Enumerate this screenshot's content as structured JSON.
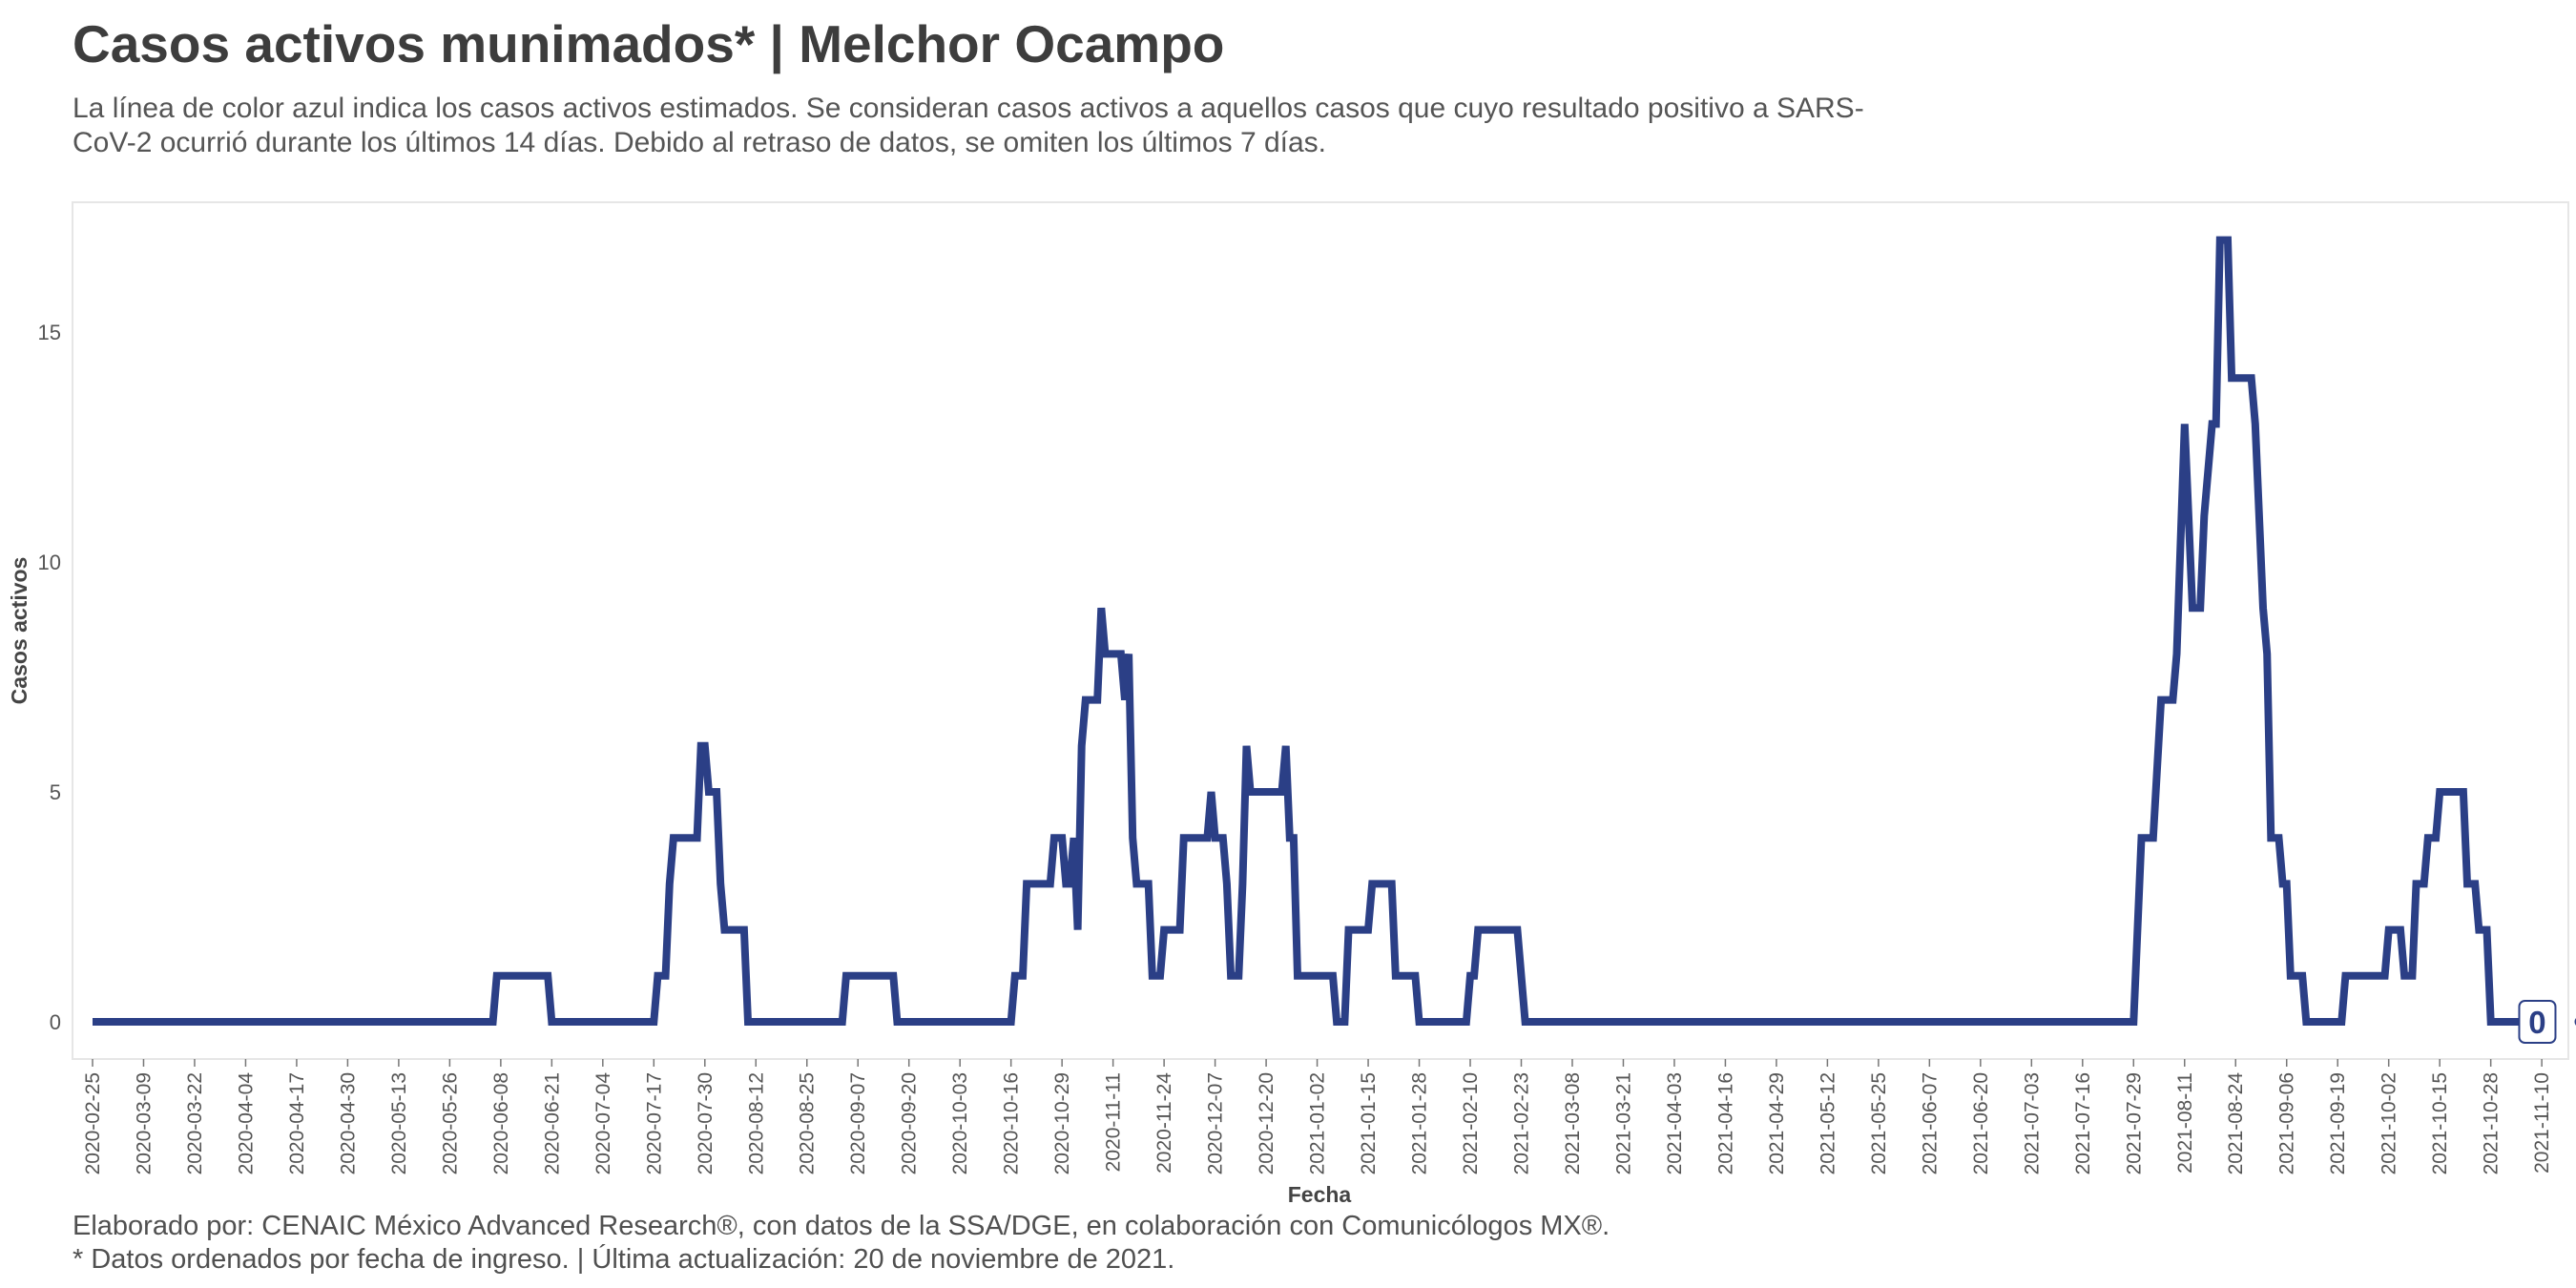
{
  "title": "Casos activos munimados* | Melchor Ocampo",
  "subtitle": "La línea de color azul indica los casos activos estimados. Se consideran casos activos a aquellos casos que cuyo resultado positivo a SARS-CoV-2 ocurrió durante los últimos 14 días. Debido al retraso de datos, se omiten los últimos 7 días.",
  "caption_line1": "Elaborado por: CENAIC México Advanced Research®, con datos de la SSA/DGE, en colaboración con Comunicólogos MX®.",
  "caption_line2": "* Datos ordenados por fecha de ingreso. | Última actualización: 20 de noviembre de 2021.",
  "colors": {
    "line": "#2b3f86",
    "grid": "#e6e6e6",
    "text": "#3d3d3d"
  },
  "chart_data": {
    "type": "line",
    "xlabel": "Fecha",
    "ylabel": "Casos activos",
    "ylim": [
      0,
      17
    ],
    "yticks": [
      0,
      5,
      10,
      15
    ],
    "x_start": "2020-02-25",
    "x_end": "2021-11-13",
    "xticks": [
      "2020-02-25",
      "2020-03-09",
      "2020-03-22",
      "2020-04-04",
      "2020-04-17",
      "2020-04-30",
      "2020-05-13",
      "2020-05-26",
      "2020-06-08",
      "2020-06-21",
      "2020-07-04",
      "2020-07-17",
      "2020-07-30",
      "2020-08-12",
      "2020-08-25",
      "2020-09-07",
      "2020-09-20",
      "2020-10-03",
      "2020-10-16",
      "2020-10-29",
      "2020-11-11",
      "2020-11-24",
      "2020-12-07",
      "2020-12-20",
      "2021-01-02",
      "2021-01-15",
      "2021-01-28",
      "2021-02-10",
      "2021-02-23",
      "2021-03-08",
      "2021-03-21",
      "2021-04-03",
      "2021-04-16",
      "2021-04-29",
      "2021-05-12",
      "2021-05-25",
      "2021-06-07",
      "2021-06-20",
      "2021-07-03",
      "2021-07-16",
      "2021-07-29",
      "2021-08-11",
      "2021-08-24",
      "2021-09-06",
      "2021-09-19",
      "2021-10-02",
      "2021-10-15",
      "2021-10-28",
      "2021-11-10"
    ],
    "series": [
      {
        "label_last": "0",
        "points": [
          [
            "2020-02-25",
            0
          ],
          [
            "2020-06-06",
            0
          ],
          [
            "2020-06-07",
            1
          ],
          [
            "2020-06-20",
            1
          ],
          [
            "2020-06-21",
            0
          ],
          [
            "2020-07-17",
            0
          ],
          [
            "2020-07-18",
            1
          ],
          [
            "2020-07-20",
            1
          ],
          [
            "2020-07-21",
            3
          ],
          [
            "2020-07-22",
            4
          ],
          [
            "2020-07-28",
            4
          ],
          [
            "2020-07-29",
            6
          ],
          [
            "2020-07-30",
            6
          ],
          [
            "2020-07-31",
            5
          ],
          [
            "2020-08-02",
            5
          ],
          [
            "2020-08-03",
            3
          ],
          [
            "2020-08-04",
            2
          ],
          [
            "2020-08-09",
            2
          ],
          [
            "2020-08-10",
            0
          ],
          [
            "2020-09-03",
            0
          ],
          [
            "2020-09-04",
            1
          ],
          [
            "2020-09-16",
            1
          ],
          [
            "2020-09-17",
            0
          ],
          [
            "2020-10-16",
            0
          ],
          [
            "2020-10-17",
            1
          ],
          [
            "2020-10-19",
            1
          ],
          [
            "2020-10-20",
            3
          ],
          [
            "2020-10-26",
            3
          ],
          [
            "2020-10-27",
            4
          ],
          [
            "2020-10-29",
            4
          ],
          [
            "2020-10-30",
            3
          ],
          [
            "2020-10-31",
            3
          ],
          [
            "2020-11-01",
            4
          ],
          [
            "2020-11-02",
            2
          ],
          [
            "2020-11-03",
            6
          ],
          [
            "2020-11-04",
            7
          ],
          [
            "2020-11-07",
            7
          ],
          [
            "2020-11-08",
            9
          ],
          [
            "2020-11-09",
            8
          ],
          [
            "2020-11-13",
            8
          ],
          [
            "2020-11-14",
            7
          ],
          [
            "2020-11-15",
            8
          ],
          [
            "2020-11-16",
            4
          ],
          [
            "2020-11-17",
            3
          ],
          [
            "2020-11-20",
            3
          ],
          [
            "2020-11-21",
            1
          ],
          [
            "2020-11-23",
            1
          ],
          [
            "2020-11-24",
            2
          ],
          [
            "2020-11-28",
            2
          ],
          [
            "2020-11-29",
            4
          ],
          [
            "2020-12-05",
            4
          ],
          [
            "2020-12-06",
            5
          ],
          [
            "2020-12-07",
            4
          ],
          [
            "2020-12-09",
            4
          ],
          [
            "2020-12-10",
            3
          ],
          [
            "2020-12-11",
            1
          ],
          [
            "2020-12-13",
            1
          ],
          [
            "2020-12-14",
            3
          ],
          [
            "2020-12-15",
            6
          ],
          [
            "2020-12-16",
            5
          ],
          [
            "2020-12-24",
            5
          ],
          [
            "2020-12-25",
            6
          ],
          [
            "2020-12-26",
            4
          ],
          [
            "2020-12-27",
            4
          ],
          [
            "2020-12-28",
            1
          ],
          [
            "2021-01-06",
            1
          ],
          [
            "2021-01-07",
            0
          ],
          [
            "2021-01-09",
            0
          ],
          [
            "2021-01-10",
            2
          ],
          [
            "2021-01-15",
            2
          ],
          [
            "2021-01-16",
            3
          ],
          [
            "2021-01-21",
            3
          ],
          [
            "2021-01-22",
            1
          ],
          [
            "2021-01-27",
            1
          ],
          [
            "2021-01-28",
            0
          ],
          [
            "2021-02-09",
            0
          ],
          [
            "2021-02-10",
            1
          ],
          [
            "2021-02-11",
            1
          ],
          [
            "2021-02-12",
            2
          ],
          [
            "2021-02-22",
            2
          ],
          [
            "2021-02-23",
            1
          ],
          [
            "2021-02-24",
            0
          ],
          [
            "2021-07-29",
            0
          ],
          [
            "2021-07-31",
            4
          ],
          [
            "2021-08-03",
            4
          ],
          [
            "2021-08-05",
            7
          ],
          [
            "2021-08-08",
            7
          ],
          [
            "2021-08-09",
            8
          ],
          [
            "2021-08-11",
            13
          ],
          [
            "2021-08-13",
            9
          ],
          [
            "2021-08-15",
            9
          ],
          [
            "2021-08-16",
            11
          ],
          [
            "2021-08-18",
            13
          ],
          [
            "2021-08-19",
            13
          ],
          [
            "2021-08-20",
            17
          ],
          [
            "2021-08-22",
            17
          ],
          [
            "2021-08-23",
            14
          ],
          [
            "2021-08-28",
            14
          ],
          [
            "2021-08-29",
            13
          ],
          [
            "2021-08-31",
            9
          ],
          [
            "2021-09-01",
            8
          ],
          [
            "2021-09-02",
            4
          ],
          [
            "2021-09-04",
            4
          ],
          [
            "2021-09-05",
            3
          ],
          [
            "2021-09-06",
            3
          ],
          [
            "2021-09-07",
            1
          ],
          [
            "2021-09-10",
            1
          ],
          [
            "2021-09-11",
            0
          ],
          [
            "2021-09-20",
            0
          ],
          [
            "2021-09-21",
            1
          ],
          [
            "2021-10-01",
            1
          ],
          [
            "2021-10-02",
            2
          ],
          [
            "2021-10-05",
            2
          ],
          [
            "2021-10-06",
            1
          ],
          [
            "2021-10-08",
            1
          ],
          [
            "2021-10-09",
            3
          ],
          [
            "2021-10-11",
            3
          ],
          [
            "2021-10-12",
            4
          ],
          [
            "2021-10-14",
            4
          ],
          [
            "2021-10-15",
            5
          ],
          [
            "2021-10-21",
            5
          ],
          [
            "2021-10-22",
            3
          ],
          [
            "2021-10-24",
            3
          ],
          [
            "2021-10-25",
            2
          ],
          [
            "2021-10-27",
            2
          ],
          [
            "2021-10-28",
            0
          ],
          [
            "2021-11-13",
            0
          ]
        ]
      }
    ]
  }
}
